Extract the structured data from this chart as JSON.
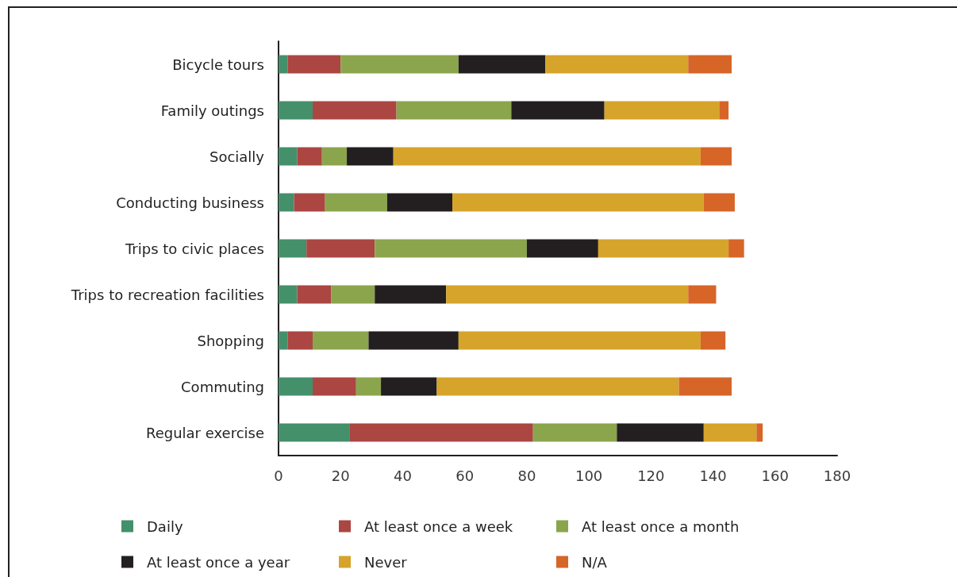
{
  "chart_data": {
    "type": "bar",
    "orientation": "horizontal",
    "stacked": true,
    "categories": [
      "Bicycle tours",
      "Family outings",
      "Socially",
      "Conducting business",
      "Trips to civic places",
      "Trips to recreation facilities",
      "Shopping",
      "Commuting",
      "Regular exercise"
    ],
    "series": [
      {
        "name": "Daily",
        "color": "#43906a",
        "values": [
          3,
          11,
          6,
          5,
          9,
          6,
          3,
          11,
          23
        ]
      },
      {
        "name": "At least once a week",
        "color": "#ab4642",
        "values": [
          17,
          27,
          8,
          10,
          22,
          11,
          8,
          14,
          59
        ]
      },
      {
        "name": "At least once a month",
        "color": "#8ba54c",
        "values": [
          38,
          37,
          8,
          20,
          49,
          14,
          18,
          8,
          27
        ]
      },
      {
        "name": "At least once a year",
        "color": "#231f20",
        "values": [
          28,
          30,
          15,
          21,
          23,
          23,
          29,
          18,
          28
        ]
      },
      {
        "name": "Never",
        "color": "#d6a42a",
        "values": [
          46,
          37,
          99,
          81,
          42,
          78,
          78,
          78,
          17
        ]
      },
      {
        "name": "N/A",
        "color": "#d76527",
        "values": [
          14,
          3,
          10,
          10,
          5,
          9,
          8,
          17,
          2
        ]
      }
    ],
    "xlim": [
      0,
      180
    ],
    "xticks": [
      0,
      20,
      40,
      60,
      80,
      100,
      120,
      140,
      160,
      180
    ],
    "grid": false,
    "legend": "bottom"
  }
}
